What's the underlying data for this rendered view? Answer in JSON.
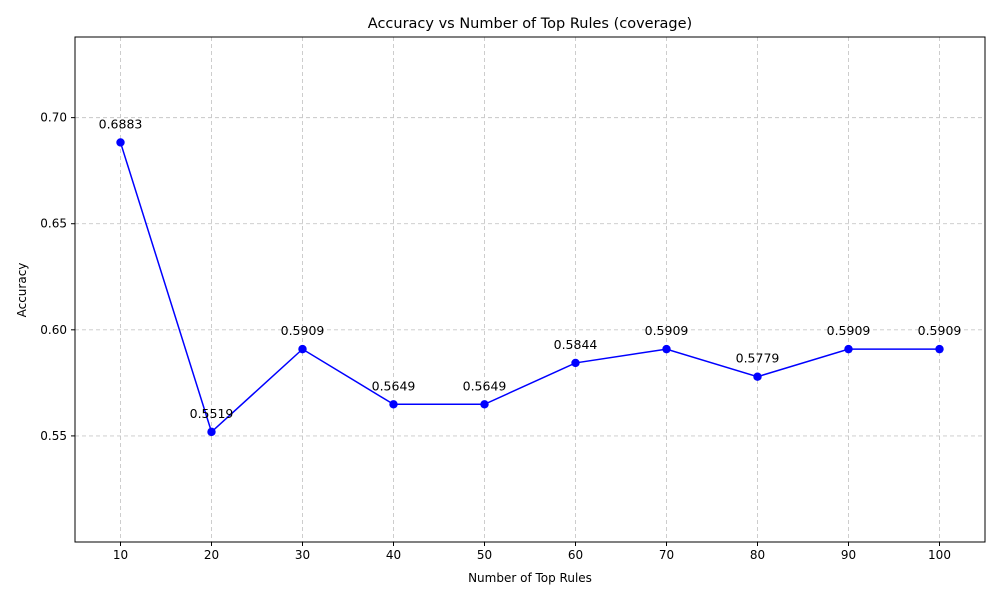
{
  "chart_data": {
    "type": "line",
    "title": "Accuracy vs Number of Top Rules (coverage)",
    "xlabel": "Number of Top Rules",
    "ylabel": "Accuracy",
    "x": [
      10,
      20,
      30,
      40,
      50,
      60,
      70,
      80,
      90,
      100
    ],
    "xticks": [
      10,
      20,
      30,
      40,
      50,
      60,
      70,
      80,
      90,
      100
    ],
    "xlim": [
      5,
      105
    ],
    "ylim": [
      0.5,
      0.738
    ],
    "yticks": [
      0.55,
      0.6,
      0.65,
      0.7
    ],
    "ytick_labels": [
      "0.55",
      "0.60",
      "0.65",
      "0.70"
    ],
    "grid": true,
    "series": [
      {
        "values": [
          0.6883,
          0.5519,
          0.5909,
          0.5649,
          0.5649,
          0.5844,
          0.5909,
          0.5779,
          0.5909,
          0.5909
        ],
        "labels": [
          "0.6883",
          "0.5519",
          "0.5909",
          "0.5649",
          "0.5649",
          "0.5844",
          "0.5909",
          "0.5779",
          "0.5909",
          "0.5909"
        ],
        "color": "#0000ff",
        "marker": "circle"
      }
    ]
  }
}
